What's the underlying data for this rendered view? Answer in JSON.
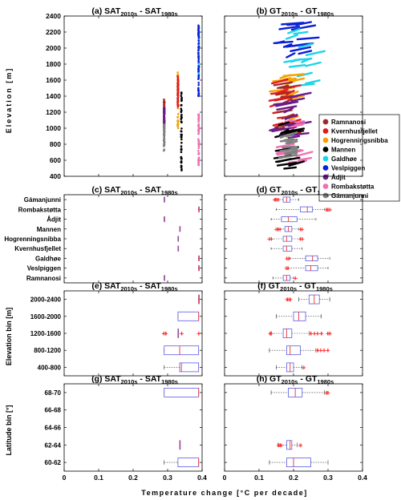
{
  "colors": {
    "Ramnanosi": "#a0282d",
    "Kvernhusfjellet": "#e31a1c",
    "Hogrenningsnibba": "#f5a300",
    "Mannen": "#000000",
    "Galdhøe": "#1cd4e8",
    "Veslpiggen": "#0b1fd6",
    "Ådjit": "#6a1b8a",
    "Rombakstøtta": "#f06fb4",
    "Gámanjunni": "#808080",
    "box": "#5a5ae6",
    "median": "#ee4444",
    "whisker": "#333333"
  },
  "axis": {
    "xlabel": "Temperature change [°C per decade]",
    "x_ticks": [
      "0",
      "0.1",
      "0.2",
      "0.3",
      "0.4"
    ],
    "a_ylabel": "Elevation [m]",
    "a_yticks": [
      "400",
      "600",
      "800",
      "1000",
      "1200",
      "1400",
      "1600",
      "1800",
      "2000",
      "2200",
      "2400"
    ],
    "e_ylabel": "Elevation bin [m]",
    "g_ylabel": "Latitude bin [°]"
  },
  "titles": {
    "a": {
      "prefix": "(a) ",
      "v1": "SAT",
      "s1": "2010s",
      "mid": " - ",
      "v2": "SAT",
      "s2": "1980s"
    },
    "b": {
      "prefix": "(b) ",
      "v1": "GT",
      "s1": "2010s",
      "mid": " - ",
      "v2": "GT",
      "s2": "1980s"
    },
    "c": {
      "prefix": "(c) ",
      "v1": "SAT",
      "s1": "2010s",
      "mid": " - ",
      "v2": "SAT",
      "s2": "1980s"
    },
    "d": {
      "prefix": "(d) ",
      "v1": "GT",
      "s1": "2010s",
      "mid": " - ",
      "v2": "GT",
      "s2": "1980s"
    },
    "e": {
      "prefix": "(e) ",
      "v1": "SAT",
      "s1": "2010s",
      "mid": " - ",
      "v2": "SAT",
      "s2": "1980s"
    },
    "f": {
      "prefix": "(f) ",
      "v1": "GT",
      "s1": "2010s",
      "mid": " - ",
      "v2": "GT",
      "s2": "1980s"
    },
    "g": {
      "prefix": "(g) ",
      "v1": "SAT",
      "s1": "2010s",
      "mid": " - ",
      "v2": "SAT",
      "s2": "1980s"
    },
    "h": {
      "prefix": "(h) ",
      "v1": "GT",
      "s1": "2010s",
      "mid": " - ",
      "v2": "GT",
      "s2": "1980s"
    }
  },
  "legend": [
    "Ramnanosi",
    "Kvernhusfjellet",
    "Hogrenningsnibba",
    "Mannen",
    "Galdhøe",
    "Veslpiggen",
    "Ådjit",
    "Rombakstøtta",
    "Gámanjunni"
  ],
  "chart_data": [
    {
      "panel": "a",
      "type": "scatter",
      "xlim": [
        0,
        0.4
      ],
      "ylim": [
        400,
        2400
      ],
      "series": [
        {
          "name": "Ramnanosi",
          "x": 0.29,
          "y_range": [
            1000,
            1360
          ]
        },
        {
          "name": "Ådjit",
          "x": 0.29,
          "y_range": [
            1060,
            1250
          ]
        },
        {
          "name": "Gámanjunni",
          "x": 0.29,
          "y_range": [
            720,
            1050
          ]
        },
        {
          "name": "Hogrenningsnibba",
          "x": 0.33,
          "y_range": [
            1000,
            1700
          ]
        },
        {
          "name": "Kvernhusfjellet",
          "x": 0.33,
          "y_range": [
            1250,
            1650
          ]
        },
        {
          "name": "Mannen",
          "x": 0.34,
          "y_range": [
            460,
            1450
          ]
        },
        {
          "name": "Galdhøe",
          "x": 0.39,
          "y_range": [
            1650,
            2300
          ]
        },
        {
          "name": "Veslpiggen",
          "x": 0.39,
          "y_range": [
            1400,
            2300
          ]
        },
        {
          "name": "Rombakstøtta",
          "x": 0.39,
          "y_range": [
            540,
            1200
          ]
        }
      ]
    },
    {
      "panel": "b",
      "type": "scatter",
      "xlim": [
        0,
        0.4
      ],
      "ylim": [
        400,
        2400
      ],
      "series": [
        {
          "name": "Veslpiggen",
          "x_range": [
            0.14,
            0.31
          ],
          "y_range": [
            1860,
            2300
          ]
        },
        {
          "name": "Galdhøe",
          "x_range": [
            0.17,
            0.29
          ],
          "y_range": [
            1450,
            2200
          ]
        },
        {
          "name": "Hogrenningsnibba",
          "x_range": [
            0.13,
            0.23
          ],
          "y_range": [
            1000,
            1720
          ]
        },
        {
          "name": "Kvernhusfjellet",
          "x_range": [
            0.13,
            0.22
          ],
          "y_range": [
            900,
            1650
          ]
        },
        {
          "name": "Ramnanosi",
          "x_range": [
            0.14,
            0.2
          ],
          "y_range": [
            900,
            1550
          ]
        },
        {
          "name": "Ådjit",
          "x_range": [
            0.13,
            0.25
          ],
          "y_range": [
            850,
            1400
          ]
        },
        {
          "name": "Rombakstøtta",
          "x_range": [
            0.13,
            0.3
          ],
          "y_range": [
            550,
            1200
          ]
        },
        {
          "name": "Mannen",
          "x_range": [
            0.14,
            0.23
          ],
          "y_range": [
            450,
            1050
          ]
        },
        {
          "name": "Gámanjunni",
          "x_range": [
            0.15,
            0.21
          ],
          "y_range": [
            600,
            900
          ]
        }
      ]
    },
    {
      "panel": "c",
      "type": "box",
      "xlim": [
        0,
        0.4
      ],
      "categories": [
        "Gámanjunni",
        "Rombakstøtta",
        "Ådjit",
        "Mannen",
        "Hogrenningsnibba",
        "Kvernhusfjellet",
        "Galdhøe",
        "Veslpiggen",
        "Ramnanosi"
      ],
      "boxes": [
        {
          "q1": 0.29,
          "med": 0.29,
          "q3": 0.29,
          "wlo": 0.29,
          "whi": 0.29
        },
        {
          "q1": 0.39,
          "med": 0.39,
          "q3": 0.39,
          "wlo": 0.39,
          "whi": 0.39
        },
        {
          "q1": 0.29,
          "med": 0.29,
          "q3": 0.29,
          "wlo": 0.29,
          "whi": 0.29
        },
        {
          "q1": 0.335,
          "med": 0.335,
          "q3": 0.335,
          "wlo": 0.335,
          "whi": 0.335
        },
        {
          "q1": 0.33,
          "med": 0.33,
          "q3": 0.33,
          "wlo": 0.33,
          "whi": 0.33
        },
        {
          "q1": 0.33,
          "med": 0.33,
          "q3": 0.33,
          "wlo": 0.33,
          "whi": 0.33
        },
        {
          "q1": 0.39,
          "med": 0.39,
          "q3": 0.39,
          "wlo": 0.39,
          "whi": 0.39
        },
        {
          "q1": 0.39,
          "med": 0.39,
          "q3": 0.39,
          "wlo": 0.39,
          "whi": 0.39
        },
        {
          "q1": 0.29,
          "med": 0.29,
          "q3": 0.29,
          "wlo": 0.29,
          "whi": 0.29
        }
      ]
    },
    {
      "panel": "d",
      "type": "box",
      "xlim": [
        0,
        0.4
      ],
      "categories": [
        "Gámanjunni",
        "Rombakstøtta",
        "Ådjit",
        "Mannen",
        "Hogrenningsnibba",
        "Kvernhusfjellet",
        "Galdhøe",
        "Veslpiggen",
        "Ramnanosi"
      ],
      "boxes": [
        {
          "q1": 0.17,
          "med": 0.18,
          "q3": 0.19,
          "wlo": 0.145,
          "whi": 0.215,
          "outliers": [
            0.145,
            0.15,
            0.155
          ]
        },
        {
          "q1": 0.22,
          "med": 0.24,
          "q3": 0.255,
          "wlo": 0.15,
          "whi": 0.29,
          "outliers": [
            0.295,
            0.3,
            0.305
          ]
        },
        {
          "q1": 0.165,
          "med": 0.185,
          "q3": 0.21,
          "wlo": 0.135,
          "whi": 0.265
        },
        {
          "q1": 0.175,
          "med": 0.185,
          "q3": 0.195,
          "wlo": 0.155,
          "whi": 0.215,
          "outliers": [
            0.15,
            0.155,
            0.16,
            0.22,
            0.225
          ]
        },
        {
          "q1": 0.17,
          "med": 0.18,
          "q3": 0.195,
          "wlo": 0.135,
          "whi": 0.22,
          "outliers": [
            0.13,
            0.135,
            0.22,
            0.225
          ]
        },
        {
          "q1": 0.17,
          "med": 0.18,
          "q3": 0.195,
          "wlo": 0.135,
          "whi": 0.225
        },
        {
          "q1": 0.235,
          "med": 0.255,
          "q3": 0.27,
          "wlo": 0.19,
          "whi": 0.305,
          "outliers": [
            0.18,
            0.185
          ]
        },
        {
          "q1": 0.235,
          "med": 0.25,
          "q3": 0.27,
          "wlo": 0.185,
          "whi": 0.3,
          "outliers": [
            0.18,
            0.185
          ]
        },
        {
          "q1": 0.17,
          "med": 0.18,
          "q3": 0.19,
          "wlo": 0.14,
          "whi": 0.2,
          "outliers": [
            0.205
          ]
        }
      ]
    },
    {
      "panel": "e",
      "type": "box",
      "xlim": [
        0,
        0.4
      ],
      "categories": [
        "2000-2400",
        "1600-2000",
        "1200-1600",
        "800-1200",
        "400-800"
      ],
      "boxes": [
        {
          "q1": 0.39,
          "med": 0.39,
          "q3": 0.39,
          "wlo": 0.39,
          "whi": 0.39
        },
        {
          "q1": 0.33,
          "med": 0.39,
          "q3": 0.39,
          "wlo": 0.33,
          "whi": 0.39
        },
        {
          "q1": 0.33,
          "med": 0.33,
          "q3": 0.33,
          "wlo": 0.33,
          "whi": 0.33,
          "outliers": [
            0.29,
            0.295,
            0.34,
            0.39
          ]
        },
        {
          "q1": 0.29,
          "med": 0.335,
          "q3": 0.39,
          "wlo": 0.29,
          "whi": 0.39
        },
        {
          "q1": 0.335,
          "med": 0.34,
          "q3": 0.39,
          "wlo": 0.29,
          "whi": 0.39
        }
      ]
    },
    {
      "panel": "f",
      "type": "box",
      "xlim": [
        0,
        0.4
      ],
      "categories": [
        "2000-2400",
        "1600-2000",
        "1200-1600",
        "800-1200",
        "400-800"
      ],
      "boxes": [
        {
          "q1": 0.245,
          "med": 0.26,
          "q3": 0.275,
          "wlo": 0.215,
          "whi": 0.305,
          "outliers": [
            0.18,
            0.185,
            0.19
          ]
        },
        {
          "q1": 0.2,
          "med": 0.215,
          "q3": 0.235,
          "wlo": 0.15,
          "whi": 0.28
        },
        {
          "q1": 0.17,
          "med": 0.18,
          "q3": 0.195,
          "wlo": 0.135,
          "whi": 0.245,
          "outliers": [
            0.13,
            0.135,
            0.25,
            0.26,
            0.27,
            0.28,
            0.3,
            0.305
          ]
        },
        {
          "q1": 0.18,
          "med": 0.19,
          "q3": 0.22,
          "wlo": 0.13,
          "whi": 0.265,
          "outliers": [
            0.27,
            0.28,
            0.29,
            0.3
          ]
        },
        {
          "q1": 0.18,
          "med": 0.19,
          "q3": 0.2,
          "wlo": 0.15,
          "whi": 0.225,
          "outliers": [
            0.23
          ]
        }
      ]
    },
    {
      "panel": "g",
      "type": "box",
      "xlim": [
        0,
        0.4
      ],
      "categories": [
        "68-70",
        "66-68",
        "64-66",
        "62-64",
        "60-62"
      ],
      "boxes": [
        {
          "q1": 0.29,
          "med": 0.39,
          "q3": 0.39,
          "wlo": 0.29,
          "whi": 0.39
        },
        null,
        null,
        {
          "q1": 0.335,
          "med": 0.335,
          "q3": 0.335,
          "wlo": 0.335,
          "whi": 0.335
        },
        {
          "q1": 0.33,
          "med": 0.39,
          "q3": 0.39,
          "wlo": 0.29,
          "whi": 0.39
        }
      ]
    },
    {
      "panel": "h",
      "type": "box",
      "xlim": [
        0,
        0.4
      ],
      "categories": [
        "68-70",
        "66-68",
        "64-66",
        "62-64",
        "60-62"
      ],
      "boxes": [
        {
          "q1": 0.185,
          "med": 0.205,
          "q3": 0.225,
          "wlo": 0.135,
          "whi": 0.29,
          "outliers": [
            0.295,
            0.3
          ]
        },
        null,
        null,
        {
          "q1": 0.18,
          "med": 0.19,
          "q3": 0.195,
          "wlo": 0.155,
          "whi": 0.21,
          "outliers": [
            0.155,
            0.16,
            0.165,
            0.22
          ]
        },
        {
          "q1": 0.18,
          "med": 0.2,
          "q3": 0.25,
          "wlo": 0.13,
          "whi": 0.3
        }
      ]
    }
  ]
}
